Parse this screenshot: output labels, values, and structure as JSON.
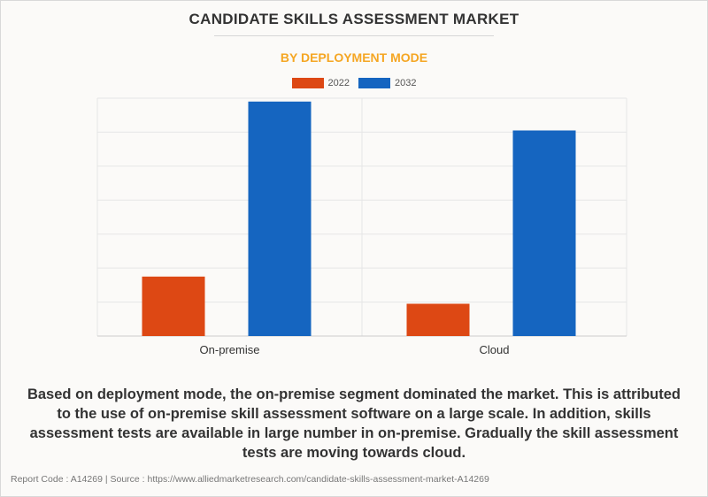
{
  "header": {
    "title": "CANDIDATE SKILLS ASSESSMENT MARKET",
    "subtitle": "BY DEPLOYMENT MODE"
  },
  "colors": {
    "series_2022": "#dd4814",
    "series_2032": "#1565c0",
    "title": "#333333",
    "subtitle": "#f5a623",
    "grid": "#e6e6e6"
  },
  "chart_data": {
    "type": "bar",
    "categories": [
      "On-premise",
      "Cloud"
    ],
    "series": [
      {
        "name": "2022",
        "values": [
          1.75,
          0.95
        ]
      },
      {
        "name": "2032",
        "values": [
          6.9,
          6.05
        ]
      }
    ],
    "title": "CANDIDATE SKILLS ASSESSMENT MARKET",
    "subtitle": "BY DEPLOYMENT MODE",
    "xlabel": "",
    "ylabel": "",
    "ylim": [
      0,
      7
    ],
    "grid": true,
    "legend": "top-center"
  },
  "caption": "Based on deployment mode, the on-premise segment dominated the market. This is attributed to the use of on-premise skill assessment software on a large scale. In addition, skills assessment tests are available in large number in on-premise. Gradually the skill assessment tests are moving towards cloud.",
  "footer": "Report Code : A14269  |  Source : https://www.alliedmarketresearch.com/candidate-skills-assessment-market-A14269"
}
